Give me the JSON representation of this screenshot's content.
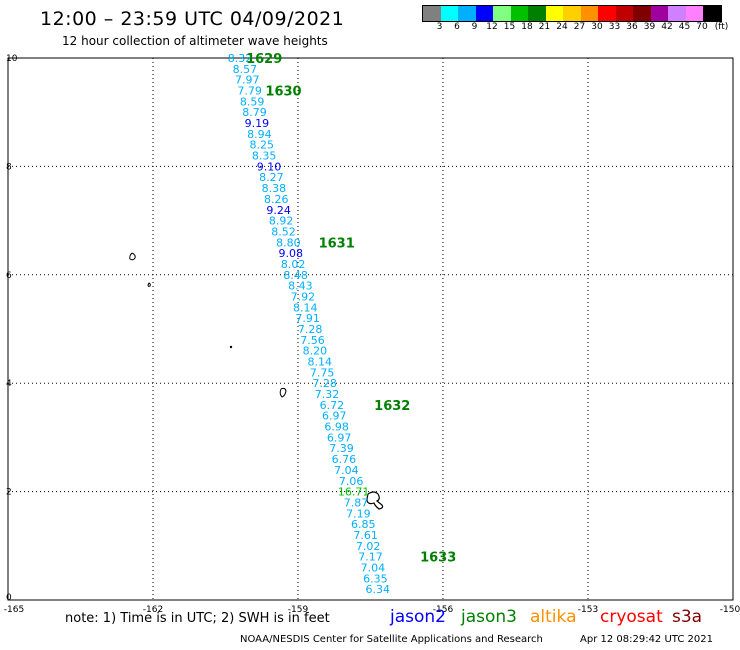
{
  "header": {
    "title": "12:00 – 23:59 UTC 04/09/2021",
    "subtitle": "12 hour collection of altimeter wave heights"
  },
  "legend": {
    "colors": [
      "#808080",
      "#00ffff",
      "#00b0ff",
      "#0000ff",
      "#80ff80",
      "#00c000",
      "#008000",
      "#ffff00",
      "#ffd000",
      "#ff9000",
      "#ff0000",
      "#c00000",
      "#800000",
      "#a000a0",
      "#d080ff",
      "#ff80ff",
      "#000000"
    ],
    "labels": [
      "3",
      "6",
      "9",
      "12",
      "15",
      "18",
      "21",
      "24",
      "27",
      "30",
      "33",
      "36",
      "39",
      "42",
      "45",
      "70",
      "(ft)"
    ]
  },
  "map": {
    "x_ticks": [
      "-165",
      "-162",
      "-159",
      "-156",
      "-153",
      "-150"
    ],
    "y_ticks": [
      "0",
      "2",
      "4",
      "6",
      "8",
      "10"
    ],
    "lon_range": [
      -165,
      -150
    ],
    "lat_range": [
      0,
      10
    ]
  },
  "chart_data": {
    "type": "scatter",
    "series": [
      {
        "name": "jason2",
        "color": "#00b0ff",
        "points": [
          {
            "lon": -160.2,
            "lat": 10.0,
            "v": "8.32"
          },
          {
            "lon": -160.1,
            "lat": 9.8,
            "v": "8.57"
          },
          {
            "lon": -160.05,
            "lat": 9.6,
            "v": "7.97"
          },
          {
            "lon": -160.0,
            "lat": 9.4,
            "v": "7.79"
          },
          {
            "lon": -159.95,
            "lat": 9.2,
            "v": "8.59"
          },
          {
            "lon": -159.9,
            "lat": 9.0,
            "v": "8.79"
          },
          {
            "lon": -159.85,
            "lat": 8.8,
            "v": "9.19",
            "color": "#0000ff"
          },
          {
            "lon": -159.8,
            "lat": 8.6,
            "v": "8.94"
          },
          {
            "lon": -159.75,
            "lat": 8.4,
            "v": "8.25"
          },
          {
            "lon": -159.7,
            "lat": 8.2,
            "v": "8.35"
          },
          {
            "lon": -159.6,
            "lat": 8.0,
            "v": "9.10",
            "color": "#0000ff"
          },
          {
            "lon": -159.55,
            "lat": 7.8,
            "v": "8.27"
          },
          {
            "lon": -159.5,
            "lat": 7.6,
            "v": "8.38"
          },
          {
            "lon": -159.45,
            "lat": 7.4,
            "v": "8.26"
          },
          {
            "lon": -159.4,
            "lat": 7.2,
            "v": "9.24",
            "color": "#0000ff"
          },
          {
            "lon": -159.35,
            "lat": 7.0,
            "v": "8.92"
          },
          {
            "lon": -159.3,
            "lat": 6.8,
            "v": "8.52"
          },
          {
            "lon": -159.2,
            "lat": 6.6,
            "v": "8.80"
          },
          {
            "lon": -159.15,
            "lat": 6.4,
            "v": "9.08",
            "color": "#0000ff"
          },
          {
            "lon": -159.1,
            "lat": 6.2,
            "v": "8.02"
          },
          {
            "lon": -159.05,
            "lat": 6.0,
            "v": "8.48"
          },
          {
            "lon": -158.95,
            "lat": 5.8,
            "v": "8.43"
          },
          {
            "lon": -158.9,
            "lat": 5.6,
            "v": "7.92"
          },
          {
            "lon": -158.85,
            "lat": 5.4,
            "v": "8.14"
          },
          {
            "lon": -158.8,
            "lat": 5.2,
            "v": "7.91"
          },
          {
            "lon": -158.75,
            "lat": 5.0,
            "v": "7.28"
          },
          {
            "lon": -158.7,
            "lat": 4.8,
            "v": "7.56"
          },
          {
            "lon": -158.65,
            "lat": 4.6,
            "v": "8.20"
          },
          {
            "lon": -158.55,
            "lat": 4.4,
            "v": "8.14"
          },
          {
            "lon": -158.5,
            "lat": 4.2,
            "v": "7.75"
          },
          {
            "lon": -158.45,
            "lat": 4.0,
            "v": "7.28"
          },
          {
            "lon": -158.4,
            "lat": 3.8,
            "v": "7.32"
          },
          {
            "lon": -158.3,
            "lat": 3.6,
            "v": "6.72"
          },
          {
            "lon": -158.25,
            "lat": 3.4,
            "v": "6.97"
          },
          {
            "lon": -158.2,
            "lat": 3.2,
            "v": "6.98"
          },
          {
            "lon": -158.15,
            "lat": 3.0,
            "v": "6.97"
          },
          {
            "lon": -158.1,
            "lat": 2.8,
            "v": "7.39"
          },
          {
            "lon": -158.05,
            "lat": 2.6,
            "v": "6.76"
          },
          {
            "lon": -158.0,
            "lat": 2.4,
            "v": "7.04"
          },
          {
            "lon": -157.9,
            "lat": 2.2,
            "v": "7.06"
          },
          {
            "lon": -157.85,
            "lat": 2.0,
            "v": "16.71",
            "color": "#00c000"
          },
          {
            "lon": -157.8,
            "lat": 1.8,
            "v": "7.87"
          },
          {
            "lon": -157.75,
            "lat": 1.6,
            "v": "7.19"
          },
          {
            "lon": -157.65,
            "lat": 1.4,
            "v": "6.85"
          },
          {
            "lon": -157.6,
            "lat": 1.2,
            "v": "7.61"
          },
          {
            "lon": -157.55,
            "lat": 1.0,
            "v": "7.02"
          },
          {
            "lon": -157.5,
            "lat": 0.8,
            "v": "7.17"
          },
          {
            "lon": -157.45,
            "lat": 0.6,
            "v": "7.04"
          },
          {
            "lon": -157.4,
            "lat": 0.4,
            "v": "6.35"
          },
          {
            "lon": -157.35,
            "lat": 0.2,
            "v": "6.34"
          }
        ]
      }
    ],
    "time_labels": [
      {
        "lon": -159.7,
        "lat": 10.0,
        "v": "1629"
      },
      {
        "lon": -159.3,
        "lat": 9.4,
        "v": "1630"
      },
      {
        "lon": -158.2,
        "lat": 6.6,
        "v": "1631"
      },
      {
        "lon": -157.05,
        "lat": 3.6,
        "v": "1632"
      },
      {
        "lon": -156.1,
        "lat": 0.8,
        "v": "1633"
      }
    ],
    "time_label_color": "#008000"
  },
  "footer": {
    "note": "note:  1) Time is in UTC;  2) SWH is in feet",
    "satellites": [
      {
        "label": "jason2",
        "color": "#0000ff"
      },
      {
        "label": "jason3",
        "color": "#008000"
      },
      {
        "label": "altika",
        "color": "#ff9000"
      },
      {
        "label": "cryosat",
        "color": "#ff0000"
      },
      {
        "label": "s3a",
        "color": "#800000"
      }
    ],
    "credit": "NOAA/NESDIS Center for Satellite Applications and Research",
    "timestamp": "Apr 12 08:29:42 UTC 2021"
  }
}
